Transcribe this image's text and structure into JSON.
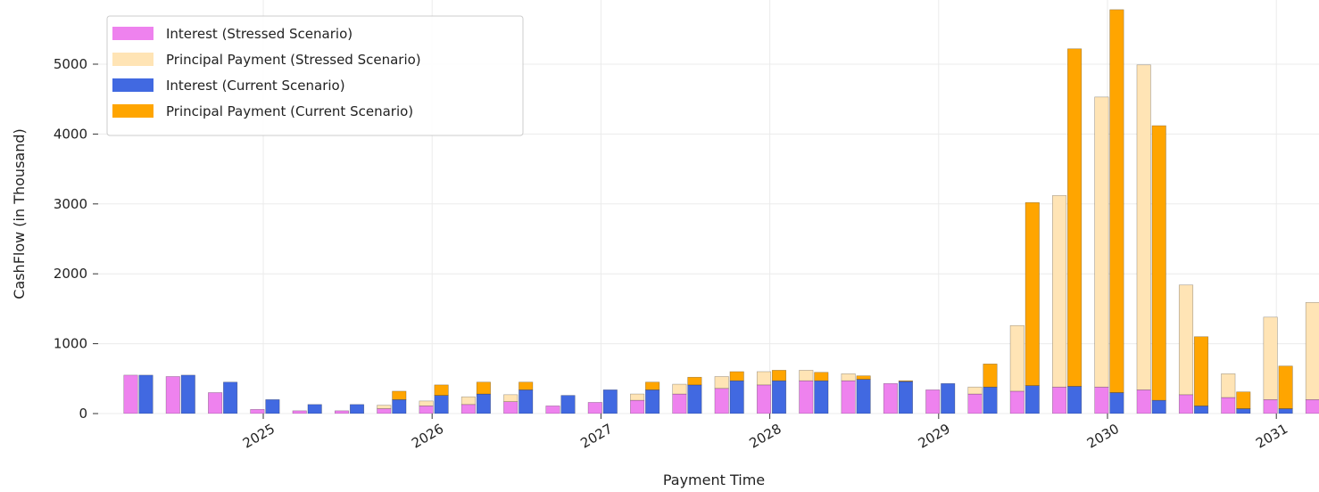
{
  "chart_data": {
    "type": "bar",
    "title": "",
    "xlabel": "Payment Time",
    "ylabel": "CashFlow (in Thousand)",
    "ylim": [
      0,
      5800
    ],
    "y_ticks": [
      0,
      1000,
      2000,
      3000,
      4000,
      5000
    ],
    "y_tick_labels": [
      "0",
      "1000",
      "2000",
      "3000",
      "4000",
      "5000"
    ],
    "x_tick_years": [
      2025,
      2026,
      2027,
      2028,
      2029,
      2030,
      2031
    ],
    "x_tick_labels": [
      "2025",
      "2026",
      "2027",
      "2028",
      "2029",
      "2030",
      "2031"
    ],
    "grid": true,
    "stacked": true,
    "legend_position": "top-left",
    "legend": [
      {
        "label": "Interest (Stressed Scenario)",
        "color": "#ee82ee"
      },
      {
        "label": "Principal Payment (Stressed Scenario)",
        "color": "#ffe4b5"
      },
      {
        "label": "Interest (Current Scenario)",
        "color": "#4169e1"
      },
      {
        "label": "Principal Payment (Current Scenario)",
        "color": "#ffa500"
      }
    ],
    "stressed": {
      "interest": [
        550,
        530,
        300,
        60,
        40,
        40,
        70,
        110,
        130,
        170,
        110,
        160,
        190,
        280,
        360,
        410,
        470,
        470,
        430,
        340,
        280,
        320,
        380,
        380,
        340,
        270,
        230,
        200,
        200
      ],
      "principal": [
        0,
        0,
        0,
        0,
        0,
        0,
        50,
        70,
        110,
        100,
        0,
        0,
        90,
        140,
        170,
        190,
        150,
        100,
        0,
        0,
        100,
        940,
        2740,
        4150,
        4650,
        1570,
        340,
        1180,
        1390
      ]
    },
    "current": {
      "interest": [
        550,
        550,
        450,
        200,
        130,
        130,
        200,
        260,
        280,
        340,
        260,
        340,
        340,
        410,
        470,
        470,
        470,
        490,
        460,
        430,
        380,
        400,
        390,
        300,
        190,
        110,
        70,
        70,
        70
      ],
      "principal": [
        0,
        0,
        0,
        0,
        0,
        0,
        120,
        150,
        170,
        110,
        0,
        0,
        110,
        110,
        130,
        150,
        120,
        50,
        10,
        0,
        330,
        2620,
        4830,
        5480,
        3930,
        990,
        240,
        610,
        670
      ]
    }
  }
}
